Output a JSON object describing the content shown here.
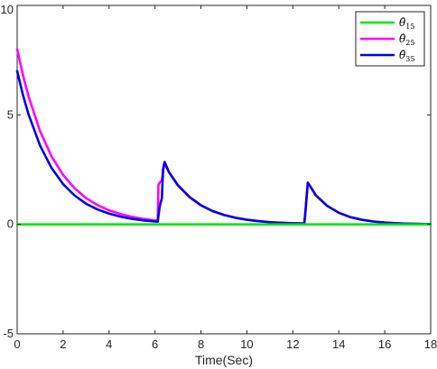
{
  "chart_data": {
    "type": "line",
    "title": "",
    "xlabel": "Time(Sec)",
    "ylabel": "",
    "xlim": [
      0,
      18
    ],
    "ylim": [
      -5,
      10
    ],
    "xticks": [
      0,
      2,
      4,
      6,
      8,
      10,
      12,
      14,
      16,
      18
    ],
    "yticks": [
      -5,
      0,
      5,
      10
    ],
    "grid": false,
    "legend_position": "top-right",
    "series": [
      {
        "name": "θ̂₁₅",
        "legend_base": "θ̂",
        "legend_sub": "15",
        "color": "#00e600",
        "x": [
          0,
          18
        ],
        "y": [
          0,
          0
        ]
      },
      {
        "name": "θ̂₂₅",
        "legend_base": "θ̂",
        "legend_sub": "25",
        "color": "#ff00ff",
        "x": [
          0,
          0.25,
          0.5,
          1,
          1.5,
          2,
          2.5,
          3,
          3.5,
          4,
          4.5,
          5,
          5.5,
          6,
          6.12,
          6.15,
          6.2,
          6.3,
          6.4,
          6.6,
          7,
          7.5,
          8,
          8.5,
          9,
          9.5,
          10,
          10.5,
          11,
          11.5,
          12,
          12.5,
          12.55,
          12.65,
          12.75,
          13,
          13.5,
          14,
          14.5,
          15,
          15.5,
          16,
          16.5,
          17,
          18
        ],
        "y": [
          8,
          6.83,
          5.83,
          4.25,
          3.1,
          2.26,
          1.65,
          1.2,
          0.88,
          0.64,
          0.47,
          0.34,
          0.25,
          0.18,
          0.17,
          1.8,
          1.9,
          2.0,
          2.8,
          2.4,
          1.78,
          1.25,
          0.87,
          0.61,
          0.43,
          0.3,
          0.21,
          0.15,
          0.1,
          0.07,
          0.05,
          0.04,
          0.6,
          1.9,
          1.75,
          1.33,
          0.84,
          0.53,
          0.33,
          0.21,
          0.13,
          0.08,
          0.05,
          0.03,
          0.01
        ]
      },
      {
        "name": "θ̂₃₅",
        "legend_base": "θ̂",
        "legend_sub": "35",
        "color": "#0000e6",
        "x": [
          0,
          0.25,
          0.5,
          1,
          1.5,
          2,
          2.5,
          3,
          3.5,
          4,
          4.5,
          5,
          5.5,
          6,
          6.12,
          6.2,
          6.3,
          6.35,
          6.42,
          6.6,
          7,
          7.5,
          8,
          8.5,
          9,
          9.5,
          10,
          10.5,
          11,
          11.5,
          12,
          12.5,
          12.55,
          12.65,
          12.75,
          13,
          13.5,
          14,
          14.5,
          15,
          15.5,
          16,
          16.5,
          17,
          18
        ],
        "y": [
          7,
          5.92,
          5.01,
          3.59,
          2.57,
          1.84,
          1.32,
          0.94,
          0.68,
          0.49,
          0.35,
          0.25,
          0.18,
          0.13,
          0.12,
          0.8,
          1.2,
          2.5,
          2.85,
          2.4,
          1.78,
          1.25,
          0.87,
          0.61,
          0.43,
          0.3,
          0.21,
          0.15,
          0.1,
          0.07,
          0.05,
          0.04,
          0.6,
          1.9,
          1.75,
          1.33,
          0.84,
          0.53,
          0.33,
          0.21,
          0.13,
          0.08,
          0.05,
          0.03,
          0.01
        ]
      }
    ]
  }
}
